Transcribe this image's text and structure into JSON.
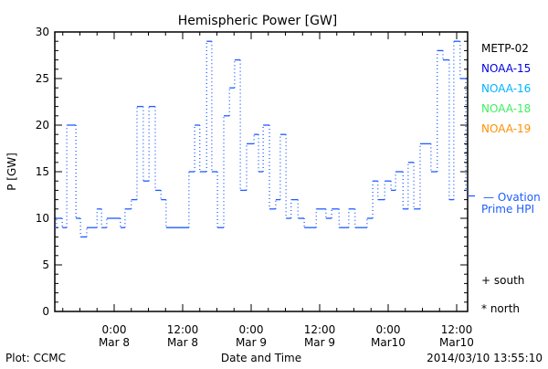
{
  "chart_data": {
    "type": "line",
    "title": "Hemispheric Power [GW]",
    "xlabel": "Date and Time",
    "ylabel": "P [GW]",
    "ylim": [
      0,
      30
    ],
    "xlim_hours_from_mar8": [
      -10.4,
      61.9
    ],
    "yticks": [
      0,
      5,
      10,
      15,
      20,
      25,
      30
    ],
    "xticks": [
      {
        "hour": 0,
        "line1": "0:00",
        "line2": "Mar 8"
      },
      {
        "hour": 12,
        "line1": "12:00",
        "line2": "Mar 8"
      },
      {
        "hour": 24,
        "line1": "0:00",
        "line2": "Mar 9"
      },
      {
        "hour": 36,
        "line1": "12:00",
        "line2": "Mar 9"
      },
      {
        "hour": 48,
        "line1": "0:00",
        "line2": "Mar10"
      },
      {
        "hour": 60,
        "line1": "12:00",
        "line2": "Mar10"
      }
    ],
    "legend": [
      {
        "label": "METP-02",
        "color": "#000000"
      },
      {
        "label": "NOAA-15",
        "color": "#0000e0"
      },
      {
        "label": "NOAA-16",
        "color": "#00b4ff"
      },
      {
        "label": "NOAA-18",
        "color": "#3cf060"
      },
      {
        "label": "NOAA-19",
        "color": "#ff9000"
      }
    ],
    "series": [
      {
        "name": "Ovation Prime HPI",
        "legend_line1": "— Ovation",
        "legend_line2": "Prime HPI",
        "color": "#1e5cff",
        "step_start_hours": [
          -10.4,
          -10.1,
          -9.1,
          -8.3,
          -6.7,
          -5.9,
          -4.8,
          -3.0,
          -2.2,
          -1.3,
          1.1,
          1.9,
          3.0,
          4.0,
          5.1,
          6.1,
          7.2,
          8.2,
          9.1,
          13.1,
          14.1,
          15.0,
          16.2,
          17.1,
          18.1,
          19.2,
          20.2,
          21.1,
          22.1,
          23.2,
          24.5,
          25.3,
          26.1,
          27.2,
          28.3,
          29.1,
          30.1,
          31.0,
          32.2,
          33.3,
          35.4,
          37.1,
          38.1,
          39.4,
          41.1,
          42.2,
          44.3,
          45.3,
          46.2,
          47.4,
          48.5,
          49.3,
          50.6,
          51.5,
          52.5,
          53.6,
          55.5,
          56.6,
          57.6,
          58.7,
          59.5,
          60.6,
          61.6
        ],
        "values": [
          9,
          10,
          9,
          20,
          10,
          8,
          9,
          11,
          9,
          10,
          9,
          11,
          12,
          22,
          14,
          22,
          13,
          12,
          9,
          15,
          20,
          15,
          29,
          15,
          9,
          21,
          24,
          27,
          13,
          18,
          19,
          15,
          20,
          11,
          12,
          19,
          10,
          12,
          10,
          9,
          11,
          10,
          11,
          9,
          11,
          9,
          10,
          14,
          12,
          14,
          13,
          15,
          11,
          16,
          11,
          18,
          15,
          28,
          27,
          12,
          29,
          25,
          13
        ],
        "end_hour": 61.9,
        "current_value": 12.4
      }
    ],
    "symbols": [
      "+ south",
      "* north"
    ]
  },
  "footer": {
    "left": "Plot: CCMC",
    "right": "2014/03/10 13:55:10"
  }
}
